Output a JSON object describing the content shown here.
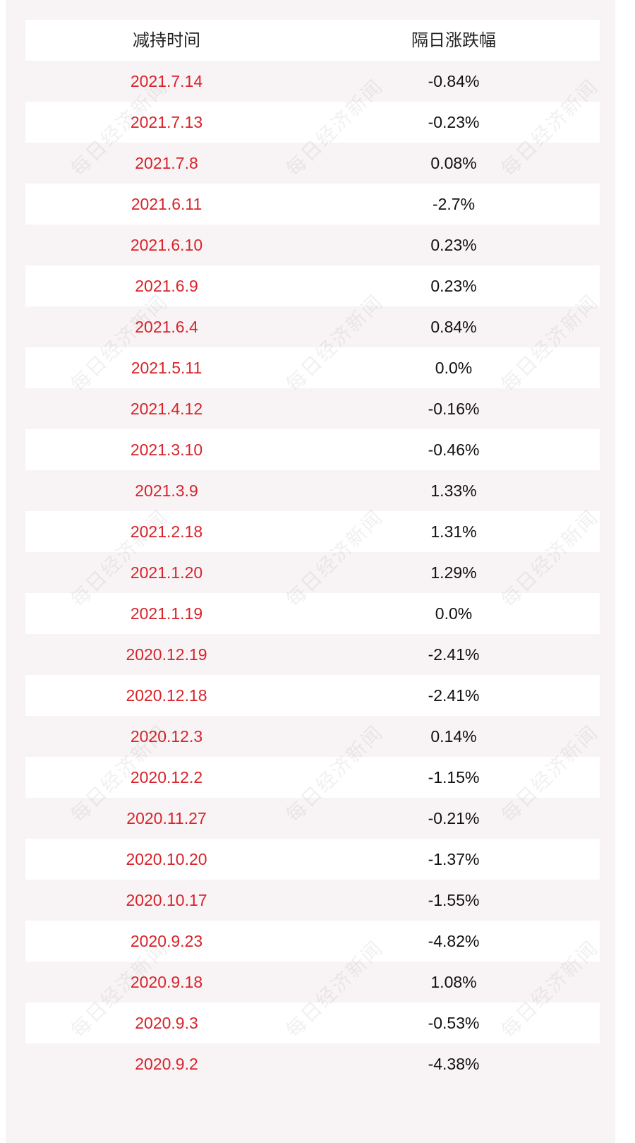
{
  "header": {
    "col1": "减持时间",
    "col2": "隔日涨跌幅"
  },
  "rows": [
    {
      "date": "2021.7.14",
      "change": "-0.84%"
    },
    {
      "date": "2021.7.13",
      "change": "-0.23%"
    },
    {
      "date": "2021.7.8",
      "change": "0.08%"
    },
    {
      "date": "2021.6.11",
      "change": "-2.7%"
    },
    {
      "date": "2021.6.10",
      "change": "0.23%"
    },
    {
      "date": "2021.6.9",
      "change": "0.23%"
    },
    {
      "date": "2021.6.4",
      "change": "0.84%"
    },
    {
      "date": "2021.5.11",
      "change": "0.0%"
    },
    {
      "date": "2021.4.12",
      "change": "-0.16%"
    },
    {
      "date": "2021.3.10",
      "change": "-0.46%"
    },
    {
      "date": "2021.3.9",
      "change": "1.33%"
    },
    {
      "date": "2021.2.18",
      "change": "1.31%"
    },
    {
      "date": "2021.1.20",
      "change": "1.29%"
    },
    {
      "date": "2021.1.19",
      "change": "0.0%"
    },
    {
      "date": "2020.12.19",
      "change": "-2.41%"
    },
    {
      "date": "2020.12.18",
      "change": "-2.41%"
    },
    {
      "date": "2020.12.3",
      "change": "0.14%"
    },
    {
      "date": "2020.12.2",
      "change": "-1.15%"
    },
    {
      "date": "2020.11.27",
      "change": "-0.21%"
    },
    {
      "date": "2020.10.20",
      "change": "-1.37%"
    },
    {
      "date": "2020.10.17",
      "change": "-1.55%"
    },
    {
      "date": "2020.9.23",
      "change": "-4.82%"
    },
    {
      "date": "2020.9.18",
      "change": "1.08%"
    },
    {
      "date": "2020.9.3",
      "change": "-0.53%"
    },
    {
      "date": "2020.9.2",
      "change": "-4.38%"
    }
  ],
  "watermark": "每日经济新闻",
  "colors": {
    "date_text": "#d8232a",
    "background": "#f8f4f5",
    "stripe": "#ffffff"
  }
}
